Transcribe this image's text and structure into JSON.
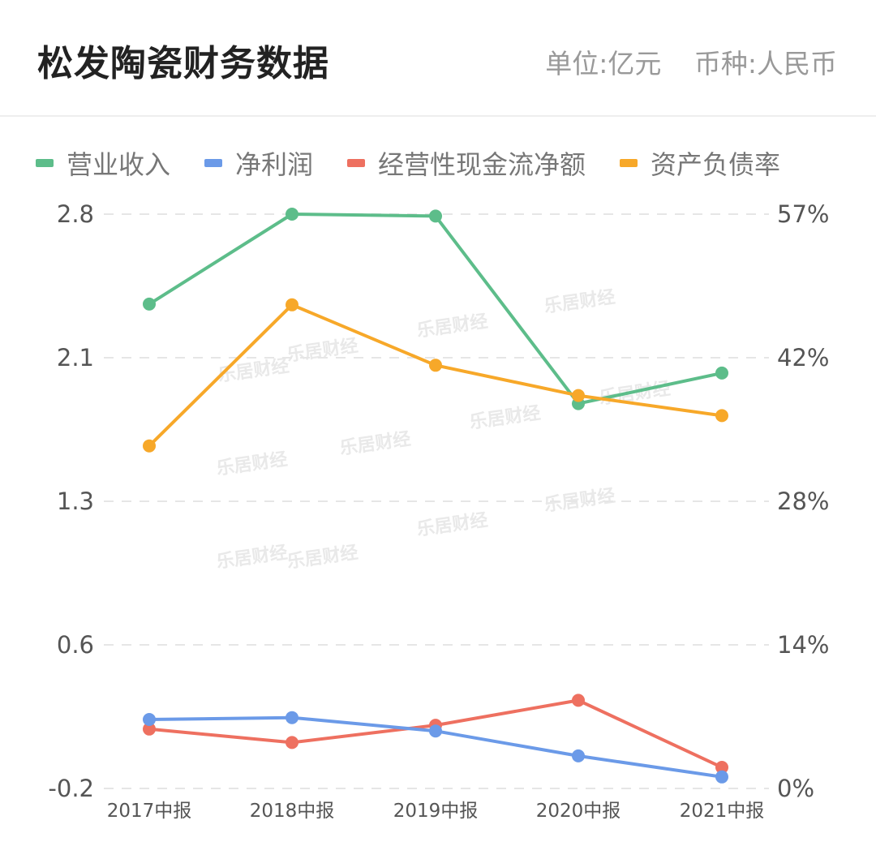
{
  "header": {
    "title": "松发陶瓷财务数据",
    "unit": "单位:亿元",
    "currency": "币种:人民币"
  },
  "watermark": "乐居财经",
  "chart_data": {
    "type": "line",
    "categories": [
      "2017中报",
      "2018中报",
      "2019中报",
      "2020中报",
      "2021中报"
    ],
    "left_axis": {
      "ticks": [
        "2.8",
        "2.1",
        "1.3",
        "0.6",
        "-0.2"
      ],
      "ylim": [
        -0.2,
        2.8
      ]
    },
    "right_axis": {
      "ticks": [
        "57%",
        "42%",
        "28%",
        "14%",
        "0%"
      ],
      "ylim": [
        0,
        57
      ]
    },
    "grid": true,
    "legend_position": "top",
    "series": [
      {
        "name": "营业收入",
        "axis": "left",
        "color": "#5dbd8a",
        "values": [
          2.33,
          2.8,
          2.79,
          1.81,
          1.97
        ]
      },
      {
        "name": "净利润",
        "axis": "left",
        "color": "#6b9ae8",
        "values": [
          0.16,
          0.17,
          0.1,
          -0.03,
          -0.14
        ]
      },
      {
        "name": "经营性现金流净额",
        "axis": "left",
        "color": "#ee7060",
        "values": [
          0.11,
          0.04,
          0.13,
          0.26,
          -0.09
        ]
      },
      {
        "name": "资产负债率",
        "axis": "right",
        "color": "#f7a829",
        "values": [
          34,
          48,
          42,
          39,
          37
        ]
      }
    ]
  }
}
